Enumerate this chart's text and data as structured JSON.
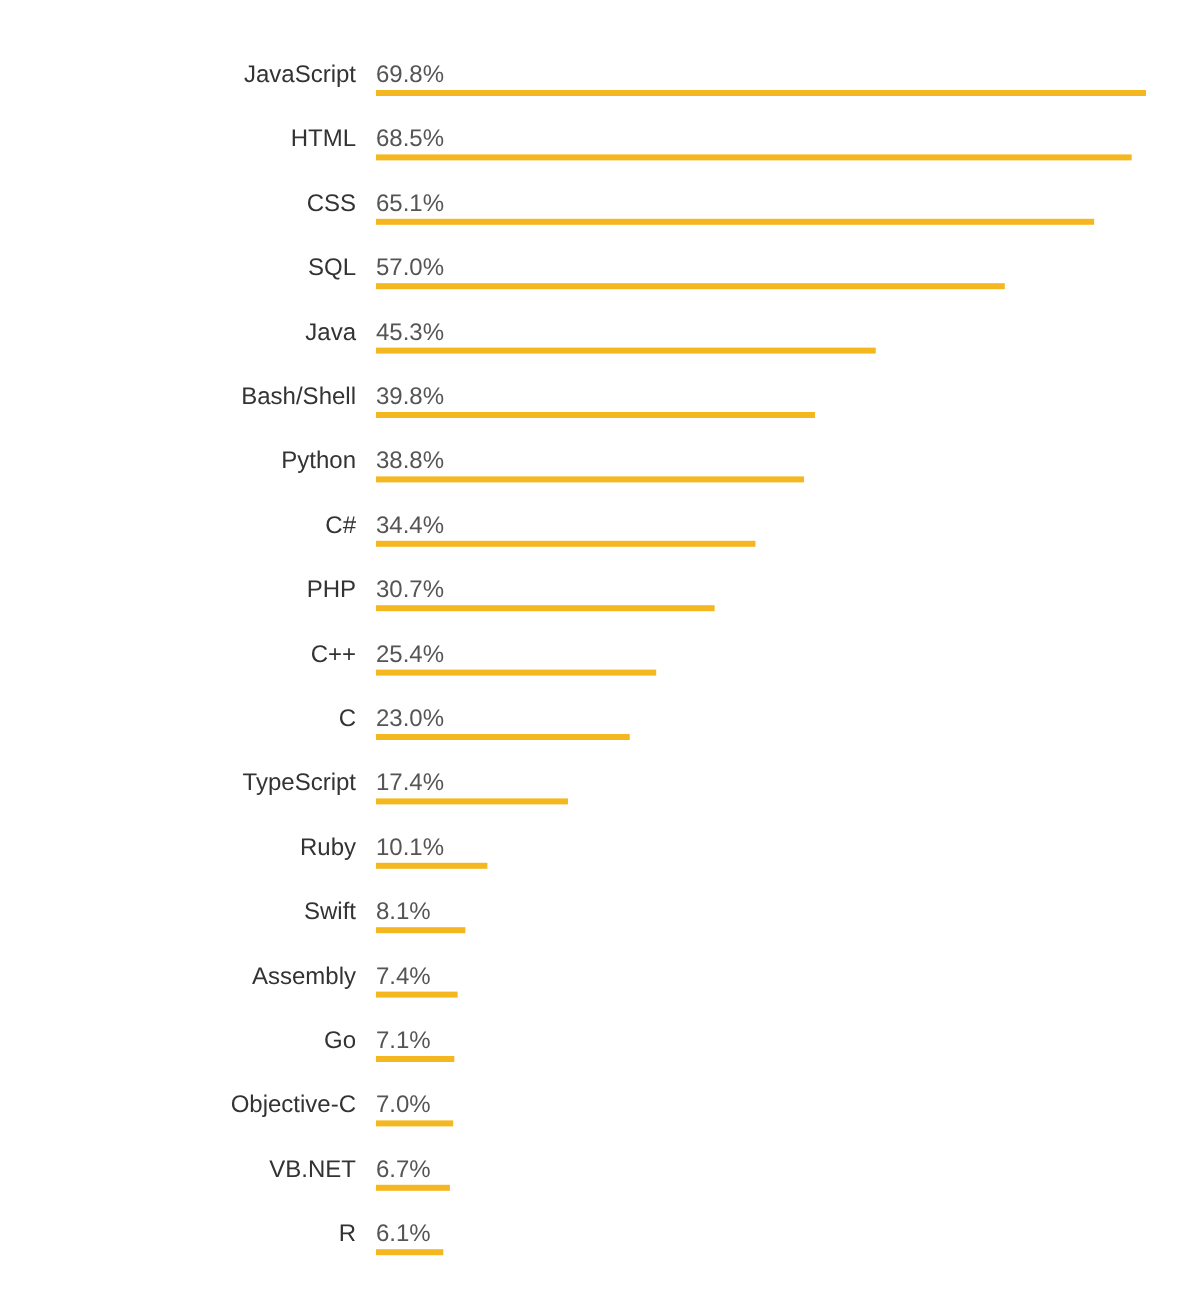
{
  "chart_data": {
    "type": "bar",
    "orientation": "horizontal",
    "color": "#f5b720",
    "categories": [
      "JavaScript",
      "HTML",
      "CSS",
      "SQL",
      "Java",
      "Bash/Shell",
      "Python",
      "C#",
      "PHP",
      "C++",
      "C",
      "TypeScript",
      "Ruby",
      "Swift",
      "Assembly",
      "Go",
      "Objective-C",
      "VB.NET",
      "R"
    ],
    "values": [
      69.8,
      68.5,
      65.1,
      57.0,
      45.3,
      39.8,
      38.8,
      34.4,
      30.7,
      25.4,
      23.0,
      17.4,
      10.1,
      8.1,
      7.4,
      7.1,
      7.0,
      6.7,
      6.1
    ],
    "value_labels": [
      "69.8%",
      "68.5%",
      "65.1%",
      "57.0%",
      "45.3%",
      "39.8%",
      "38.8%",
      "34.4%",
      "30.7%",
      "25.4%",
      "23.0%",
      "17.4%",
      "10.1%",
      "8.1%",
      "7.4%",
      "7.1%",
      "7.0%",
      "6.7%",
      "6.1%"
    ]
  }
}
